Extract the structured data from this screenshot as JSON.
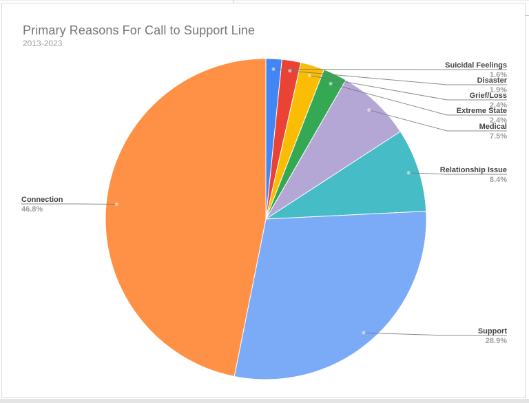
{
  "chart": {
    "title": "Primary Reasons For Call to Support Line",
    "subtitle": "2013-2023"
  },
  "chart_data": {
    "type": "pie",
    "title": "Primary Reasons For Call to Support Line",
    "subtitle": "2013-2023",
    "unit": "%",
    "start_angle_deg": 0,
    "direction": "clockwise",
    "labels_style": "outside-with-leader-lines",
    "slices": [
      {
        "label": "Suicidal Feelings",
        "value": 1.6,
        "display_pct": "1.6%",
        "color": "#4285F4"
      },
      {
        "label": "Disaster",
        "value": 1.9,
        "display_pct": "1.9%",
        "color": "#EA4335"
      },
      {
        "label": "Grief/Loss",
        "value": 2.4,
        "display_pct": "2.4%",
        "color": "#FBBC04"
      },
      {
        "label": "Extreme State",
        "value": 2.4,
        "display_pct": "2.4%",
        "color": "#34A853"
      },
      {
        "label": "Medical",
        "value": 7.5,
        "display_pct": "7.5%",
        "color": "#B4A7D6"
      },
      {
        "label": "Relationship Issue",
        "value": 8.4,
        "display_pct": "8.4%",
        "color": "#46BDC6"
      },
      {
        "label": "Support",
        "value": 28.9,
        "display_pct": "28.9%",
        "color": "#7BAAF7"
      },
      {
        "label": "Connection",
        "value": 46.8,
        "display_pct": "46.8%",
        "color": "#FF9146"
      }
    ]
  },
  "style_colors": {
    "title_text": "#757575",
    "subtitle_text": "#9e9e9e",
    "slice_label_text": "#424242",
    "slice_pct_text": "#9e9e9e",
    "leader_line": "#757575",
    "chart_border": "#d9d9d9"
  }
}
